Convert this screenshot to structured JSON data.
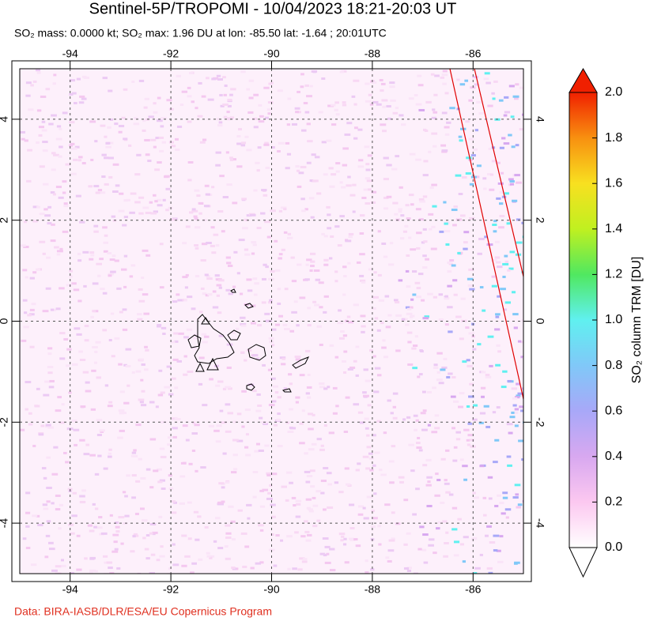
{
  "title": "Sentinel-5P/TROPOMI - 10/04/2023 18:21-20:03 UT",
  "subtitle": "SO₂ mass: 0.0000 kt; SO₂ max: 1.96 DU at lon: -85.50 lat: -1.64 ; 20:01UTC",
  "map": {
    "xlim": [
      -95,
      -85
    ],
    "ylim": [
      -5,
      5
    ],
    "xticks": [
      -94,
      -92,
      -90,
      -88,
      -86
    ],
    "yticks": [
      -4,
      -2,
      0,
      2,
      4
    ],
    "grid": true
  },
  "colorbar": {
    "label": "SO₂ column TRM [DU]",
    "lim": [
      0,
      2
    ],
    "ticks": [
      {
        "value": 0,
        "label": "0.0"
      },
      {
        "value": 0.2,
        "label": "0.2"
      },
      {
        "value": 0.4,
        "label": "0.4"
      },
      {
        "value": 0.6,
        "label": "0.6"
      },
      {
        "value": 0.8,
        "label": "0.8"
      },
      {
        "value": 1,
        "label": "1.0"
      },
      {
        "value": 1.2,
        "label": "1.2"
      },
      {
        "value": 1.4,
        "label": "1.4"
      },
      {
        "value": 1.6,
        "label": "1.6"
      },
      {
        "value": 1.8,
        "label": "1.8"
      },
      {
        "value": 2,
        "label": "2.0"
      }
    ],
    "colors": [
      "#ffffff",
      "#fcc8f0",
      "#d8a8f0",
      "#a8a8f8",
      "#80c8f8",
      "#60f0f0",
      "#50e860",
      "#c0f020",
      "#f8e020",
      "#f89010",
      "#f02000"
    ]
  },
  "footer": "Data: BIRA-IASB/DLR/ESA/EU Copernicus Program"
}
